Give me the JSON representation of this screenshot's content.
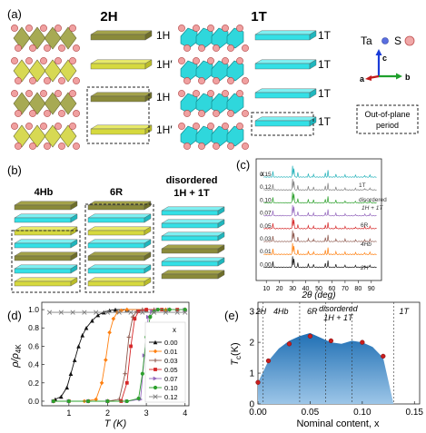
{
  "panels": {
    "a": {
      "label": "(a)",
      "col_2H": "2H",
      "col_1T": "1T",
      "layers_2H": [
        "1H",
        "1H′",
        "1H",
        "1H′"
      ],
      "layers_1T": [
        "1T",
        "1T",
        "1T",
        "1T"
      ],
      "legend": {
        "ta": "Ta",
        "s": "S",
        "axis_c": "c",
        "axis_a": "a",
        "axis_b": "b",
        "box_line1": "Out-of-plane",
        "box_line2": "period"
      }
    },
    "b": {
      "label": "(b)",
      "stacks": [
        "4Hb",
        "6R",
        "disordered",
        "1H + 1T"
      ]
    },
    "c": {
      "label": "(c)",
      "x_var": "x",
      "xlabel": "2θ (deg)",
      "xticks": [
        "10",
        "20",
        "30",
        "40",
        "50",
        "60",
        "70",
        "80",
        "90"
      ],
      "series": [
        {
          "x": "0.15",
          "phase": "1T",
          "color": "#1fb0b8"
        },
        {
          "x": "0.12",
          "phase": "",
          "color": "#7f7f7f"
        },
        {
          "x": "0.10",
          "phase": "disordered 1H + 1T",
          "color": "#2ca02c"
        },
        {
          "x": "0.07",
          "phase": "6R",
          "color": "#9467bd"
        },
        {
          "x": "0.05",
          "phase": "",
          "color": "#d62728"
        },
        {
          "x": "0.03",
          "phase": "4Hb",
          "color": "#8c564b"
        },
        {
          "x": "0.01",
          "phase": "",
          "color": "#ff7f0e"
        },
        {
          "x": "0.00",
          "phase": "2H",
          "color": "#111111"
        }
      ],
      "phase_labels": [
        "1T",
        "disordered",
        "1H + 1T",
        "6R",
        "4Hb",
        "2H"
      ]
    }
  },
  "chart_data": [
    {
      "type": "line",
      "panel": "(d)",
      "xlabel": "T (K)",
      "ylabel": "ρ/ρ",
      "ylabel_sub": "4K",
      "xlim": [
        0.3,
        4.1
      ],
      "ylim": [
        -0.05,
        1.08
      ],
      "xticks": [
        1,
        2,
        3,
        4
      ],
      "yticks": [
        "0.0",
        "0.2",
        "0.4",
        "0.6",
        "0.8",
        "1.0"
      ],
      "legend_title": "x",
      "legend_position": "right",
      "series": [
        {
          "name": "0.00",
          "color": "#111111",
          "marker": "triangle-up",
          "x": [
            0.65,
            0.8,
            0.95,
            1.05,
            1.15,
            1.25,
            1.35,
            1.45,
            1.6,
            1.75,
            1.9,
            2.05,
            2.2,
            2.5,
            3.0,
            3.5,
            4.0
          ],
          "y": [
            0.02,
            0.05,
            0.15,
            0.3,
            0.45,
            0.6,
            0.72,
            0.8,
            0.88,
            0.94,
            0.97,
            0.99,
            1.0,
            1.0,
            1.0,
            1.0,
            1.0
          ]
        },
        {
          "name": "0.01",
          "color": "#ff7f0e",
          "marker": "diamond",
          "x": [
            0.6,
            1.0,
            1.4,
            1.7,
            1.85,
            1.95,
            2.05,
            2.15,
            2.25,
            2.35,
            2.5,
            3.0,
            3.5,
            4.0
          ],
          "y": [
            0.0,
            0.0,
            0.0,
            0.02,
            0.2,
            0.45,
            0.75,
            0.9,
            0.97,
            0.99,
            1.0,
            1.0,
            1.0,
            1.0
          ]
        },
        {
          "name": "0.03",
          "color": "#8c564b",
          "marker": "plus",
          "x": [
            0.6,
            1.0,
            1.5,
            2.0,
            2.3,
            2.45,
            2.55,
            2.65,
            2.75,
            2.9,
            3.2,
            3.6,
            4.0
          ],
          "y": [
            0.0,
            0.0,
            0.0,
            0.0,
            0.02,
            0.3,
            0.7,
            0.92,
            0.98,
            1.0,
            1.0,
            1.0,
            1.0
          ]
        },
        {
          "name": "0.05",
          "color": "#d62728",
          "marker": "square",
          "x": [
            0.6,
            1.0,
            1.5,
            2.0,
            2.35,
            2.5,
            2.6,
            2.7,
            2.8,
            3.0,
            3.4,
            3.8
          ],
          "y": [
            0.0,
            0.0,
            0.0,
            0.0,
            0.0,
            0.2,
            0.6,
            0.9,
            0.98,
            1.0,
            1.0,
            1.0
          ]
        },
        {
          "name": "0.07",
          "color": "#9467bd",
          "marker": "triangle-right",
          "x": [
            0.6,
            1.0,
            1.5,
            2.0,
            2.5,
            2.85,
            2.95,
            3.05,
            3.15,
            3.3,
            3.6,
            4.0
          ],
          "y": [
            0.0,
            0.0,
            0.0,
            0.0,
            0.0,
            0.02,
            0.5,
            0.92,
            0.98,
            1.0,
            1.0,
            1.0
          ]
        },
        {
          "name": "0.10",
          "color": "#2ca02c",
          "marker": "circle",
          "x": [
            0.6,
            1.0,
            1.5,
            2.0,
            2.5,
            2.8,
            2.9,
            3.0,
            3.1,
            3.2,
            3.3,
            3.6,
            4.0
          ],
          "y": [
            0.0,
            0.0,
            0.0,
            0.0,
            0.0,
            0.03,
            0.3,
            0.7,
            0.92,
            0.98,
            1.0,
            1.0,
            1.0
          ]
        },
        {
          "name": "0.12",
          "color": "#7f7f7f",
          "marker": "x",
          "x": [
            0.5,
            0.8,
            1.1,
            1.4,
            1.7,
            2.0,
            2.3,
            2.6,
            2.9,
            3.2,
            3.5,
            3.8,
            4.0
          ],
          "y": [
            0.97,
            0.97,
            0.97,
            0.97,
            0.97,
            0.97,
            0.97,
            0.97,
            0.97,
            0.97,
            0.97,
            0.97,
            0.97
          ]
        }
      ]
    },
    {
      "type": "area",
      "panel": "(e)",
      "xlabel": "Nominal content, x",
      "ylabel": "T",
      "ylabel_sub": "c",
      "ylabel_unit": "(K)",
      "xlim": [
        0.0,
        0.155
      ],
      "ylim": [
        0.0,
        3.3
      ],
      "xticks": [
        "0.00",
        "0.05",
        "0.10",
        "0.15"
      ],
      "yticks": [
        "0",
        "1",
        "2",
        "3"
      ],
      "points_x": [
        0.0,
        0.01,
        0.03,
        0.05,
        0.07,
        0.1,
        0.12
      ],
      "points_y": [
        0.7,
        1.4,
        1.95,
        2.2,
        2.05,
        2.0,
        1.55
      ],
      "dome_x": [
        0.0,
        0.01,
        0.02,
        0.03,
        0.04,
        0.05,
        0.06,
        0.07,
        0.08,
        0.09,
        0.1,
        0.11,
        0.12,
        0.13
      ],
      "dome_y": [
        0.7,
        1.4,
        1.8,
        2.05,
        2.2,
        2.3,
        2.15,
        2.0,
        1.95,
        2.05,
        2.0,
        1.85,
        1.5,
        0.0
      ],
      "phase_boundaries": [
        0.005,
        0.04,
        0.065,
        0.09
      ],
      "phases": [
        "2H",
        "4Hb",
        "6R",
        "disordered",
        "1H + 1T",
        "1T"
      ]
    }
  ]
}
